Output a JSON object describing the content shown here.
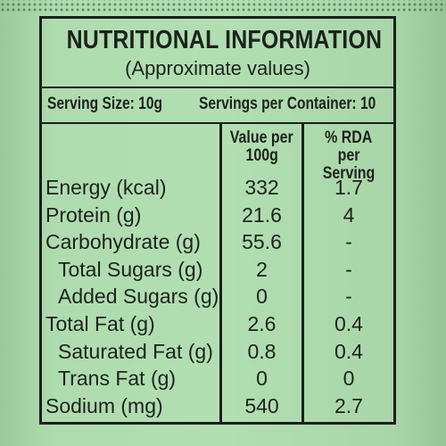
{
  "label": {
    "title": "NUTRITIONAL INFORMATION",
    "subtitle": "(Approximate values)",
    "serving_size": "Serving Size: 10g",
    "servings_per_container": "Servings per Container: 10",
    "columns": {
      "value_line1": "Value per",
      "value_line2": "100g",
      "rda_line1": "% RDA",
      "rda_line2": "per Serving"
    },
    "rows": [
      {
        "name": "Energy (kcal)",
        "value": "332",
        "rda": "1.7",
        "indent": false
      },
      {
        "name": "Protein (g)",
        "value": "21.6",
        "rda": "4",
        "indent": false
      },
      {
        "name": "Carbohydrate (g)",
        "value": "55.6",
        "rda": "-",
        "indent": false
      },
      {
        "name": "Total Sugars (g)",
        "value": "2",
        "rda": "-",
        "indent": true
      },
      {
        "name": "Added Sugars (g)",
        "value": "0",
        "rda": "-",
        "indent": true
      },
      {
        "name": "Total Fat (g)",
        "value": "2.6",
        "rda": "0.4",
        "indent": false
      },
      {
        "name": "Saturated Fat (g)",
        "value": "0.8",
        "rda": "0.4",
        "indent": true
      },
      {
        "name": "Trans Fat (g)",
        "value": "0",
        "rda": "0",
        "indent": true
      },
      {
        "name": "Sodium (mg)",
        "value": "540",
        "rda": "2.7",
        "indent": false
      }
    ]
  },
  "colors": {
    "background": "#a7d3a7",
    "ink": "#1c221c"
  }
}
